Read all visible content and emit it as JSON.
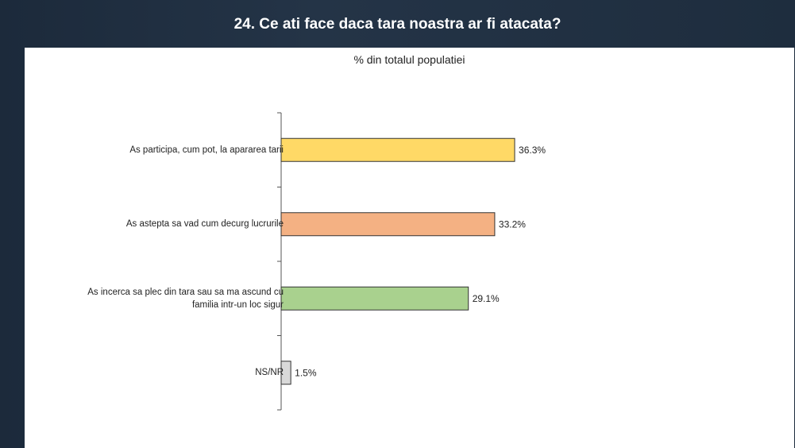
{
  "slide": {
    "title": "24. Ce ati face daca tara noastra ar fi atacata?"
  },
  "chart_data": {
    "type": "bar",
    "orientation": "horizontal",
    "title": "% din totalul populatiei",
    "categories": [
      "As participa, cum pot, la apararea tarii",
      "As astepta sa vad cum decurg lucrurile",
      "As incerca sa plec din tara sau sa ma ascund cu familia intr-un loc sigur",
      "NS/NR"
    ],
    "values": [
      36.3,
      33.2,
      29.1,
      1.5
    ],
    "labels": [
      "36.3%",
      "33.2%",
      "29.1%",
      "1.5%"
    ],
    "colors": [
      "#FFD966",
      "#F4B183",
      "#A9D18E",
      "#D9D9D9"
    ],
    "xlim": [
      0,
      100
    ]
  }
}
